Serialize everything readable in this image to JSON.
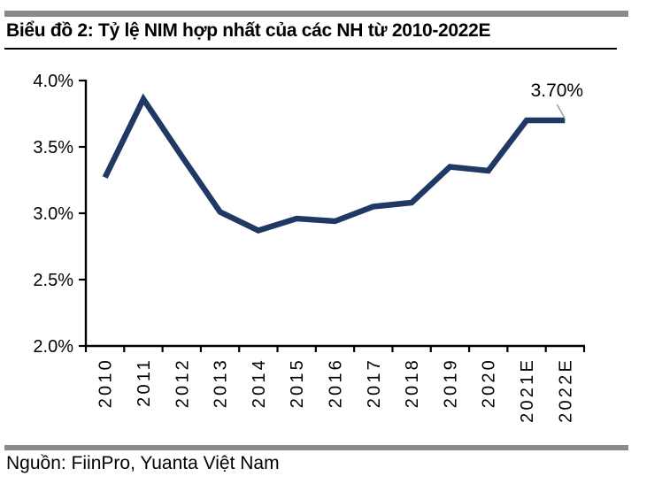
{
  "header": {
    "title": "Biểu đồ 2: Tỷ lệ NIM hợp nhất của các NH từ 2010-2022E"
  },
  "footer": {
    "source": "Nguồn: FiinPro, Yuanta Việt Nam"
  },
  "colors": {
    "line": "#1f3864",
    "axis": "#000000",
    "divider_gray": "#8a8a8a",
    "leader_gray": "#a0a0a0",
    "text": "#000000"
  },
  "chart_data": {
    "type": "line",
    "title": "Tỷ lệ NIM hợp nhất của các NH từ 2010-2022E",
    "categories": [
      "2010",
      "2011",
      "2012",
      "2013",
      "2014",
      "2015",
      "2016",
      "2017",
      "2018",
      "2019",
      "2020",
      "2021E",
      "2022E"
    ],
    "values": [
      3.27,
      3.86,
      3.43,
      3.01,
      2.87,
      2.96,
      2.94,
      3.05,
      3.08,
      3.35,
      3.32,
      3.7,
      3.7
    ],
    "unit": "%",
    "xlabel": "",
    "ylabel": "",
    "ylim": [
      2.0,
      4.0
    ],
    "yticks": [
      4.0,
      3.5,
      3.0,
      2.5,
      2.0
    ],
    "ytick_labels": [
      "4.0%",
      "3.5%",
      "3.0%",
      "2.5%",
      "2.0%"
    ],
    "xtick_rotation": 90,
    "grid": false,
    "legend": false,
    "annotation": {
      "text": "3.70%",
      "target_category": "2022E",
      "target_value": 3.7
    }
  }
}
